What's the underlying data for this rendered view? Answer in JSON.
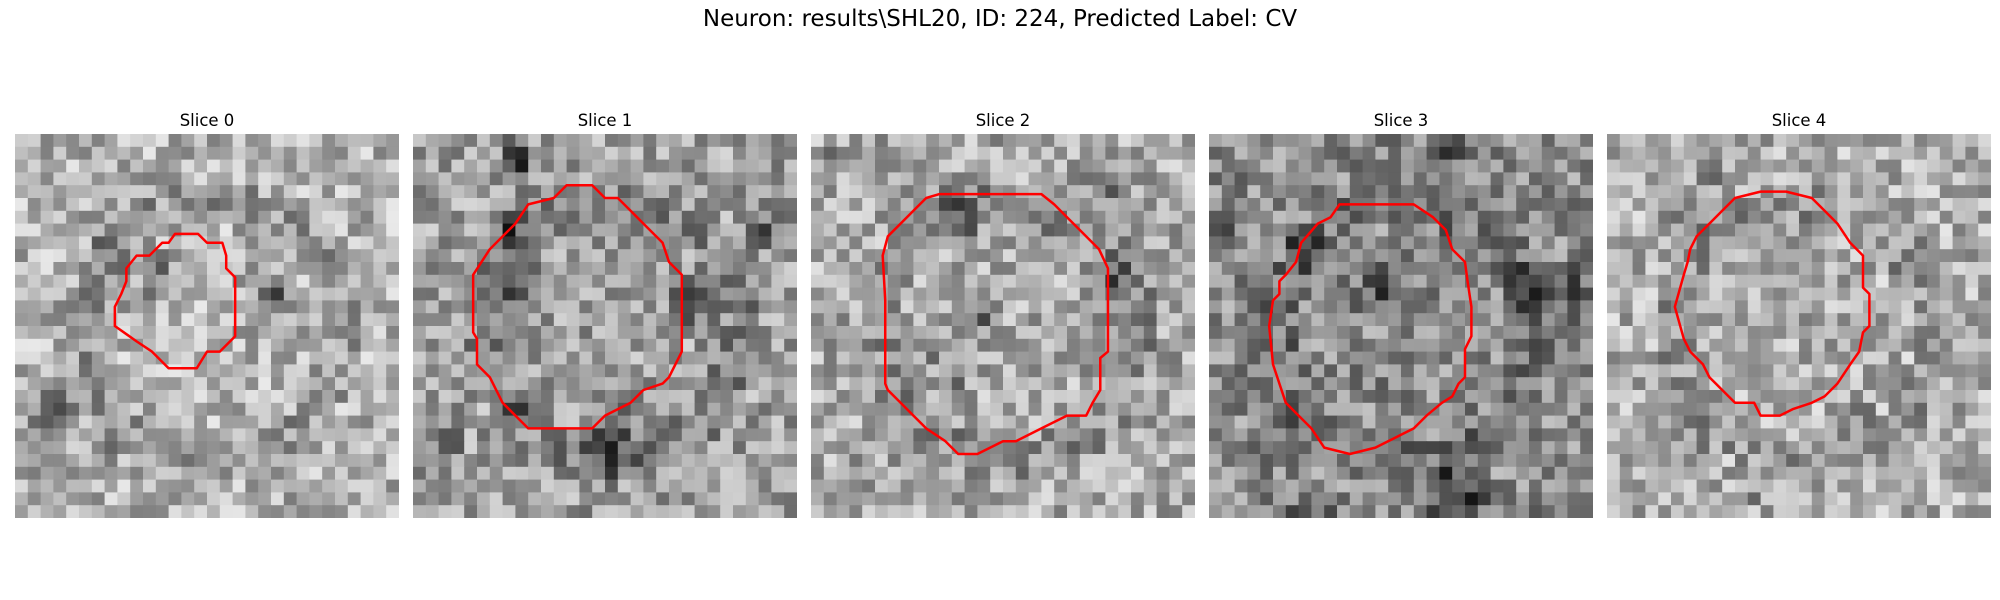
{
  "title": "Neuron: results\\SHL20, ID: 224, Predicted Label: CV",
  "contour_color": "#ff0000",
  "panels": [
    {
      "title": "Slice 0",
      "base": 178,
      "dark_spots": 7,
      "seed": 11,
      "contour": "circle-small"
    },
    {
      "title": "Slice 1",
      "base": 160,
      "dark_spots": 10,
      "seed": 23,
      "contour": "circle-large"
    },
    {
      "title": "Slice 2",
      "base": 170,
      "dark_spots": 9,
      "seed": 37,
      "contour": "circle-large-2"
    },
    {
      "title": "Slice 3",
      "base": 140,
      "dark_spots": 12,
      "seed": 41,
      "contour": "circle-large-3"
    },
    {
      "title": "Slice 4",
      "base": 175,
      "dark_spots": 8,
      "seed": 53,
      "contour": "circle-medium"
    }
  ]
}
